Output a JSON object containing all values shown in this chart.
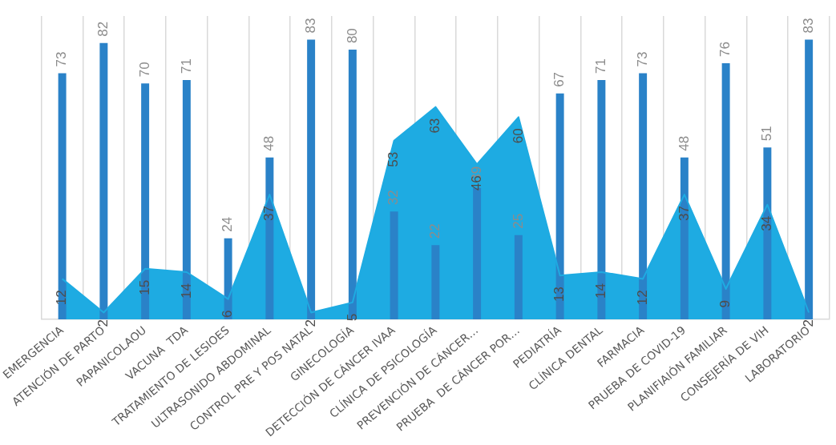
{
  "chart_data": {
    "type": "bar",
    "categories": [
      "EMERGENCIA",
      "ATENCIÓN DE PARTO",
      "PAPANICOLAOU",
      "VACUNA  TDA",
      "TRATAMIENTO DE LESIOES",
      "ULTRASONIDO ABDOMINAL",
      "CONTROL PRE Y POS NATAL",
      "GINECOLOGÍA",
      "DETECCIÓN DE CÁNCER IVAA",
      "CLÍNICA DE PSICOLOGÍA",
      "PREVENCIÓN DE CÁNCER…",
      "PRUEBA  DE CÁNCER POR…",
      "PEDIATRÍA",
      "CLÍNICA DENTAL",
      "FARMACIA",
      "PRUEBA DE COVID-19",
      "PLANIFIAIÓN FAMILIAR",
      "CONSEJERÍA DE VIH",
      "LABORATORIO"
    ],
    "series": [
      {
        "color": "#2a82c8",
        "values": [
          73,
          82,
          70,
          71,
          24,
          48,
          83,
          80,
          32,
          22,
          39,
          25,
          67,
          71,
          73,
          48,
          76,
          51,
          83
        ]
      },
      {
        "type": "area",
        "color": "#1eabe2",
        "values": [
          12,
          2,
          15,
          14,
          6,
          37,
          2,
          5,
          53,
          63,
          46,
          60,
          13,
          14,
          12,
          37,
          9,
          34,
          2
        ]
      }
    ],
    "ylim": [
      0,
      90
    ],
    "grid": "x",
    "data_labels": true,
    "tick_labels": "x",
    "legend": false
  }
}
